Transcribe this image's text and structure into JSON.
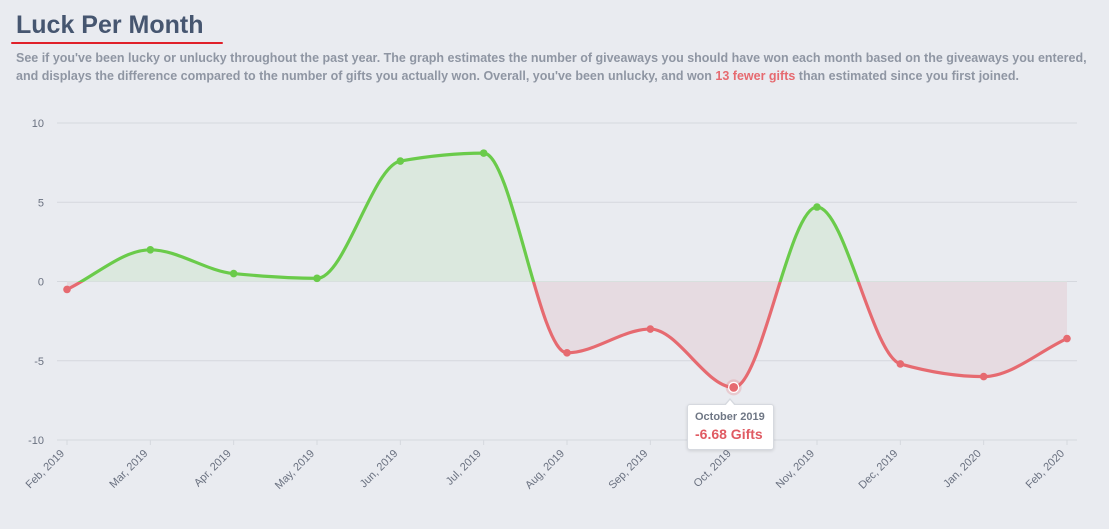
{
  "header": {
    "title": "Luck Per Month",
    "desc_before": "See if you've been lucky or unlucky throughout the past year. The graph estimates the number of giveaways you should have won each month based on the giveaways you entered, and displays the difference compared to the number of gifts you actually won. Overall, you've been unlucky, and won ",
    "desc_highlight": "13 fewer gifts",
    "desc_after": " than estimated since you first joined."
  },
  "tooltip": {
    "label": "October 2019",
    "value": "-6.68 Gifts"
  },
  "colors": {
    "positive_line": "#6acb4a",
    "negative_line": "#e66a70",
    "positive_fill": "#dbe8de",
    "negative_fill": "#e6dbe1",
    "grid": "#d5d8de",
    "background": "#e9ebf0"
  },
  "chart_data": {
    "type": "area",
    "title": "",
    "xlabel": "",
    "ylabel": "",
    "ylim": [
      -10,
      10
    ],
    "yticks": [
      10,
      5,
      0,
      -5,
      -10
    ],
    "categories": [
      "Feb, 2019",
      "Mar, 2019",
      "Apr, 2019",
      "May, 2019",
      "Jun, 2019",
      "Jul, 2019",
      "Aug, 2019",
      "Sep, 2019",
      "Oct, 2019",
      "Nov, 2019",
      "Dec, 2019",
      "Jan, 2020",
      "Feb, 2020"
    ],
    "series": [
      {
        "values": [
          -0.5,
          2.0,
          0.5,
          0.2,
          7.6,
          8.1,
          -4.5,
          -3.0,
          -6.68,
          4.7,
          -5.2,
          -6.0,
          -3.6
        ]
      }
    ],
    "highlighted_index": 8,
    "grid": true
  }
}
